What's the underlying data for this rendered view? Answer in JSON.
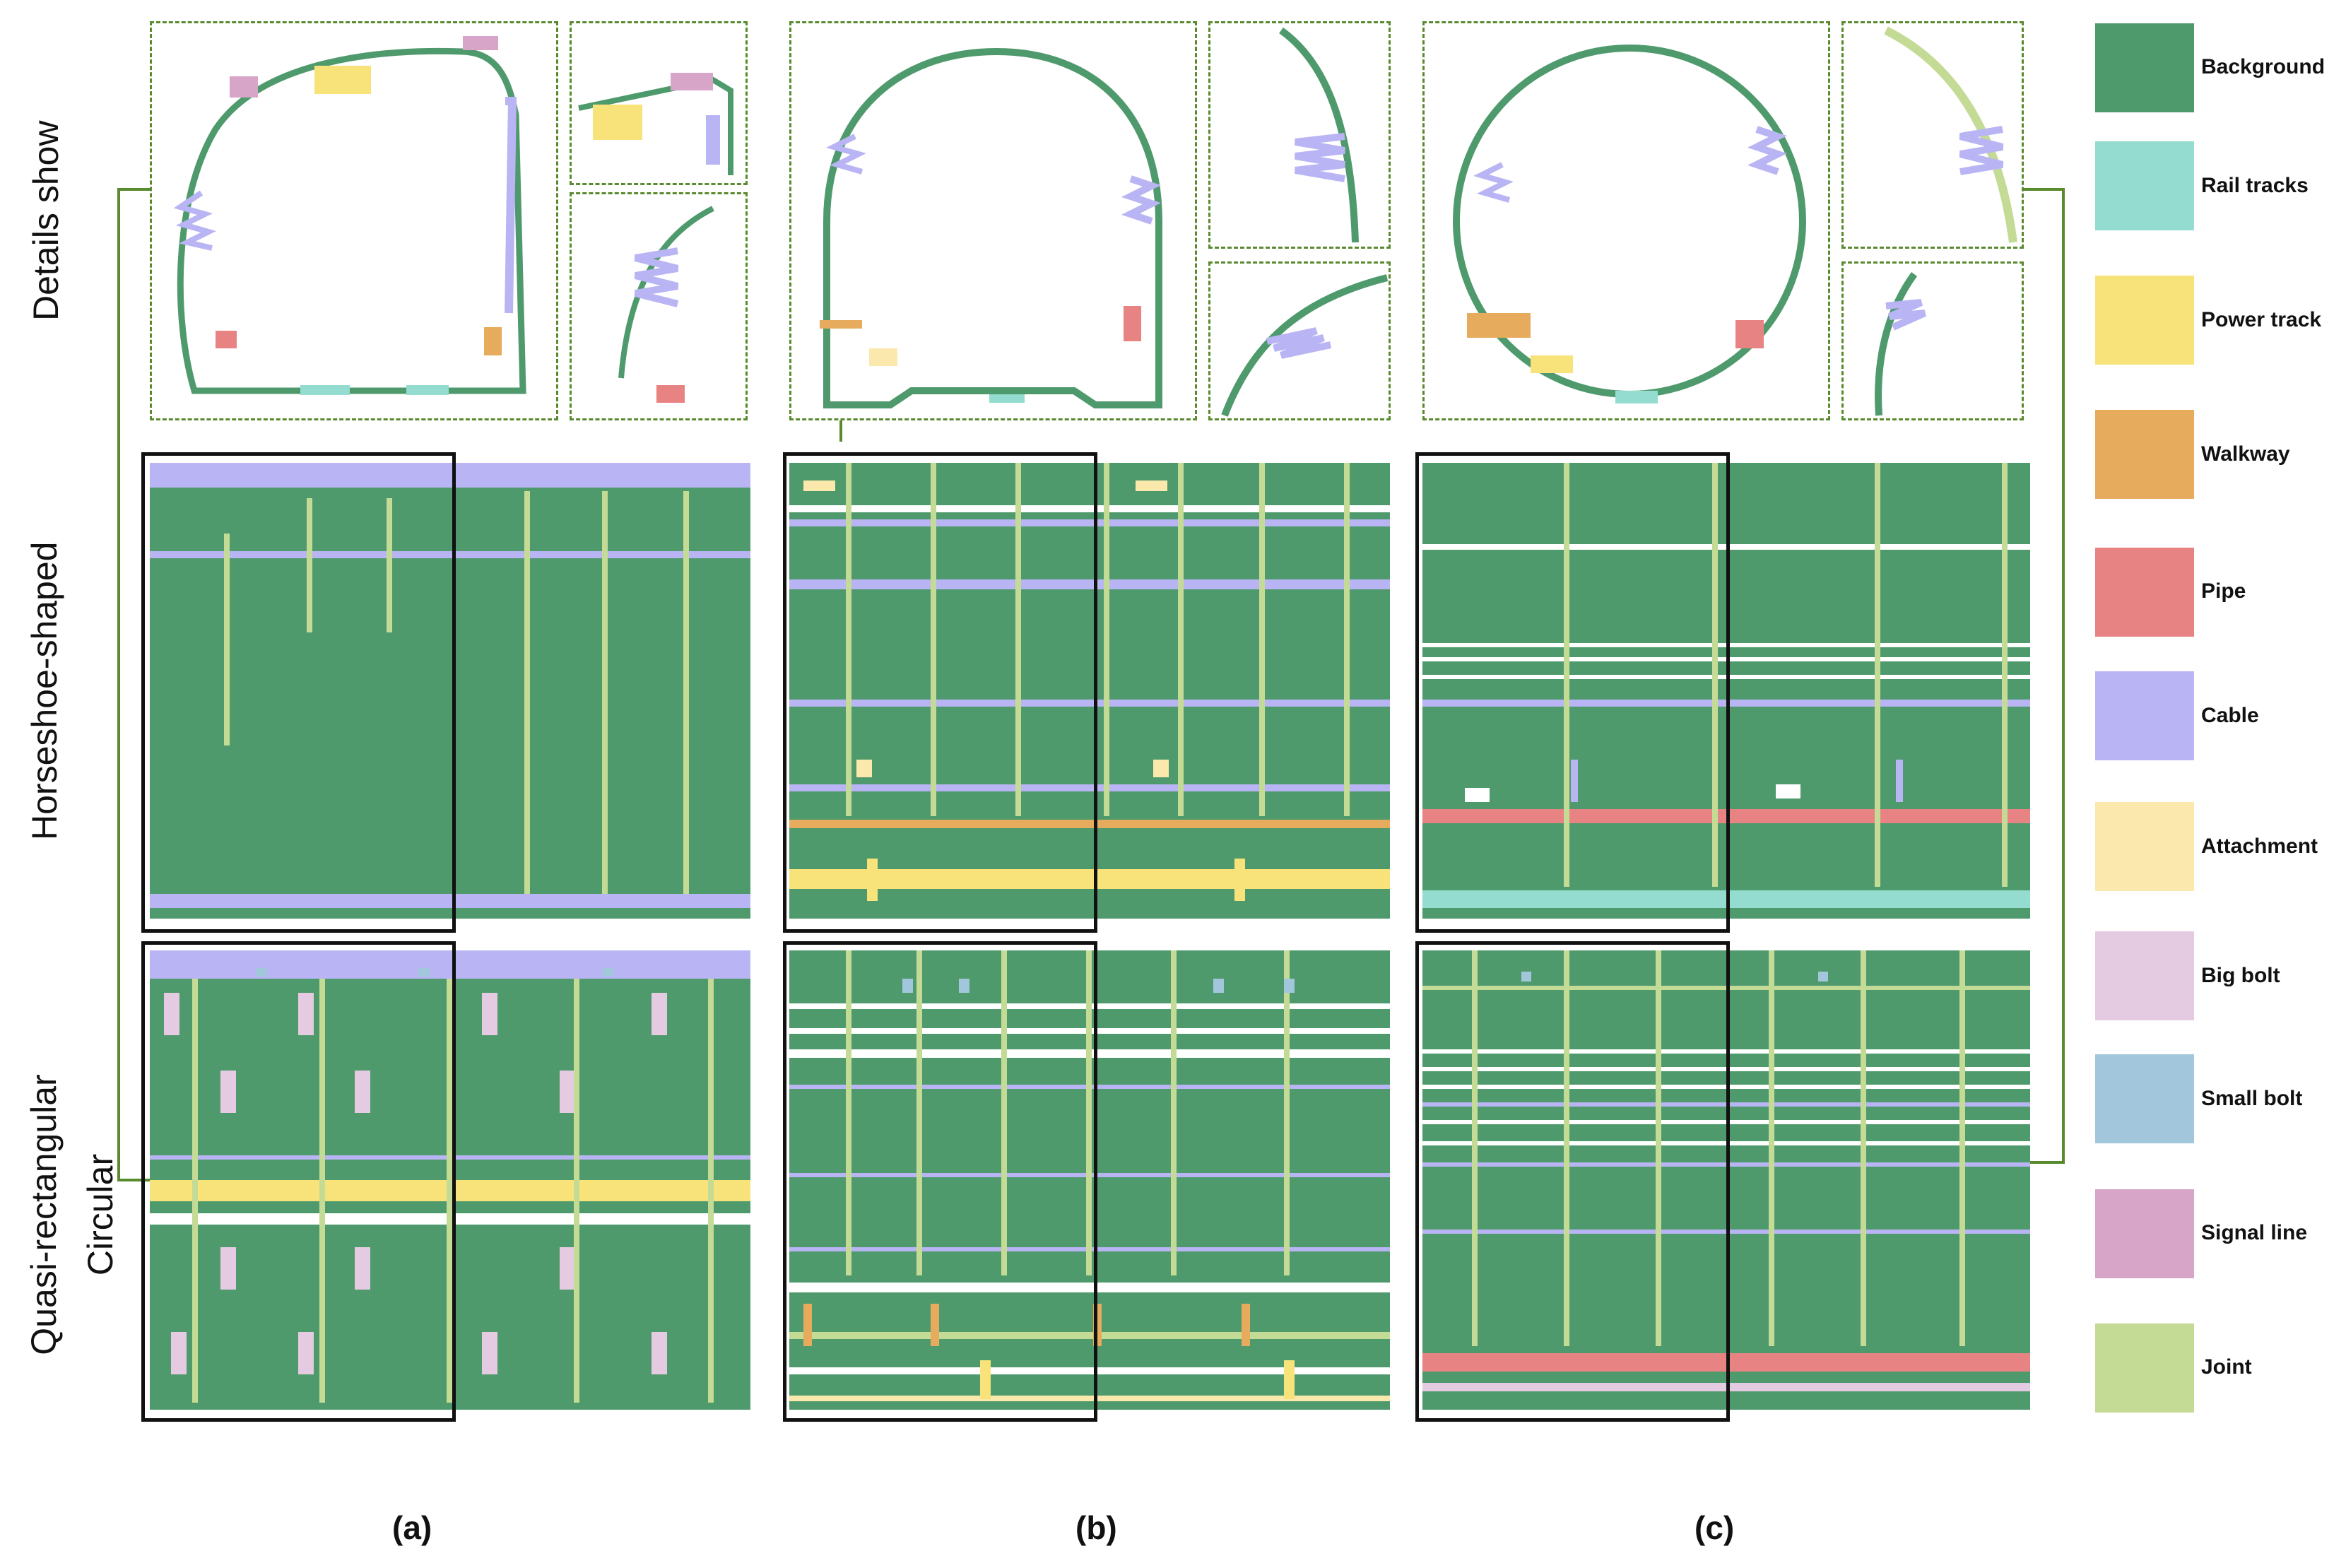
{
  "row_labels": {
    "details": "Details show",
    "horseshoe": "Horseshoe-shaped",
    "quasi": "Quasi-rectangular",
    "circular": "Circular"
  },
  "captions": [
    "(a)",
    "(b)",
    "(c)"
  ],
  "legend": [
    {
      "label": "Background",
      "color": "#4f9a6c"
    },
    {
      "label": "Rail tracks",
      "color": "#93dccf"
    },
    {
      "label": "Power track",
      "color": "#f7e37a"
    },
    {
      "label": "Walkway",
      "color": "#e6ab5c"
    },
    {
      "label": "Pipe",
      "color": "#e88383"
    },
    {
      "label": "Cable",
      "color": "#b9b4f3"
    },
    {
      "label": "Attachment",
      "color": "#fbe8ad"
    },
    {
      "label": "Big bolt",
      "color": "#e5cbe1"
    },
    {
      "label": "Small bolt",
      "color": "#a2c6dc"
    },
    {
      "label": "Signal line",
      "color": "#d7a5c8"
    },
    {
      "label": "Joint",
      "color": "#c4db96"
    }
  ]
}
